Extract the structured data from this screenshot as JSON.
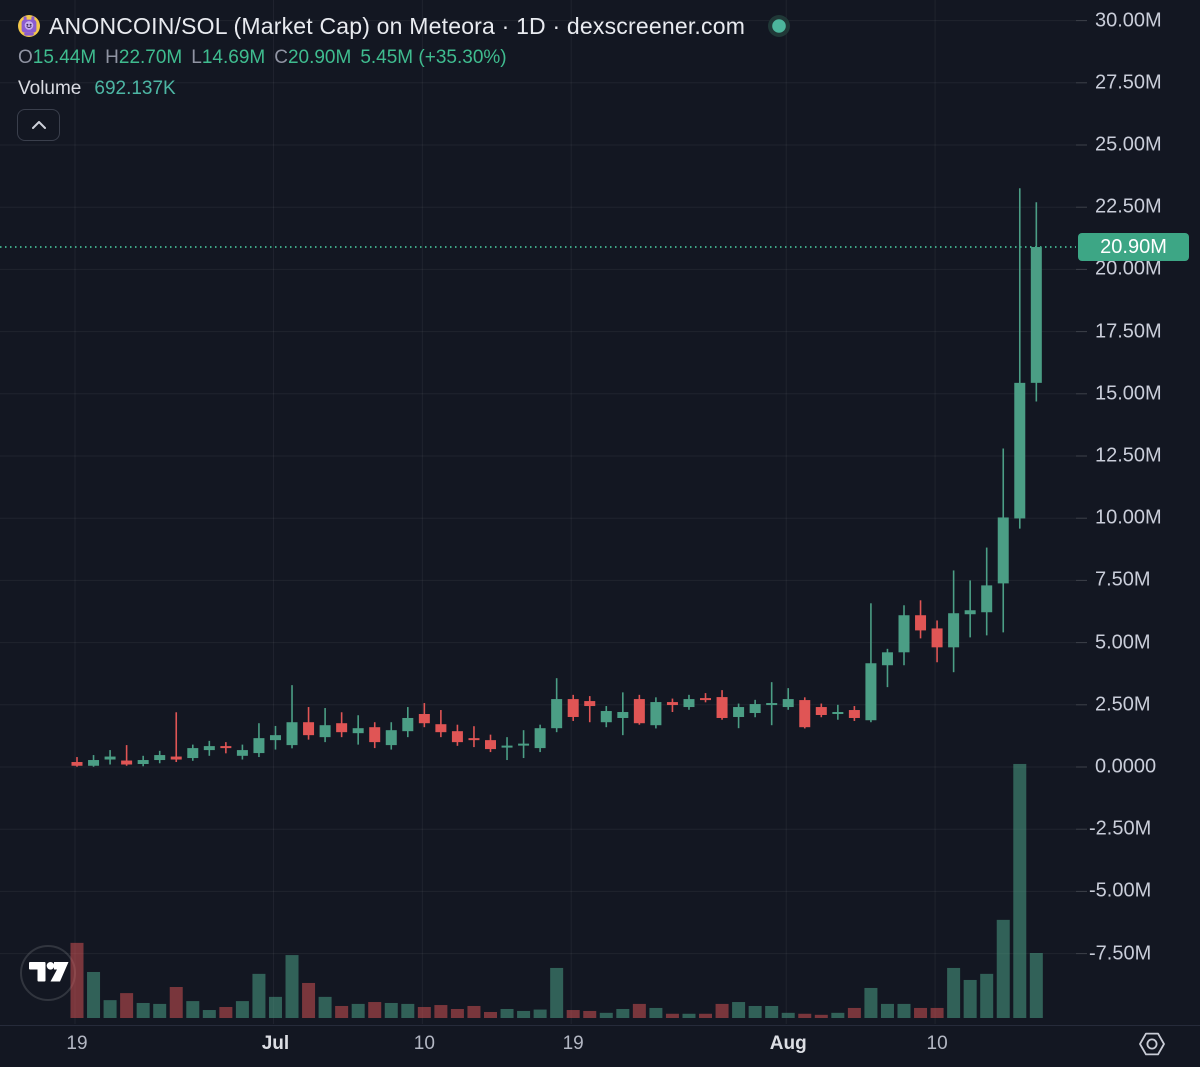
{
  "header": {
    "title": "ANONCOIN/SOL (Market Cap) on Meteora · 1D · dexscreener.com",
    "coin_icon": "anoncoin-robot-icon",
    "status_icon": "live-status-dot",
    "ohlc": {
      "items": [
        {
          "k": "O",
          "v": "15.44M"
        },
        {
          "k": "H",
          "v": "22.70M"
        },
        {
          "k": "L",
          "v": "14.69M"
        },
        {
          "k": "C",
          "v": "20.90M"
        }
      ],
      "change": "5.45M (+35.30%)"
    },
    "volume_label": "Volume",
    "volume_value": "692.137K",
    "collapse_icon": "chevron-up-icon"
  },
  "footer": {
    "watermark_icon": "tradingview-logo",
    "settings_icon": "gear-icon"
  },
  "colors": {
    "background": "#131722",
    "candle_up": "#4b9e85",
    "candle_down": "#e05555",
    "volume_up": "rgba(75,158,133,0.55)",
    "volume_down": "rgba(224,85,85,0.50)",
    "accent": "#3da685",
    "badge_bg": "#3da685",
    "legend_value_green": "#3fbc8f",
    "volume_value_teal": "#4db6a4",
    "grid": "rgba(255,255,255,0.055)"
  },
  "chart_data": {
    "type": "candlestick",
    "pair": "ANONCOIN/SOL",
    "metric": "Market Cap",
    "venue": "Meteora",
    "interval": "1D",
    "source": "dexscreener.com",
    "price_unit": "USD market cap, millions (M)",
    "volume_unit": "thousands (K)",
    "last_price": 20.9,
    "last_price_label": "20.90M",
    "ohlc_last": {
      "open": 15.44,
      "high": 22.7,
      "low": 14.69,
      "close": 20.9,
      "change_abs": 5.45,
      "change_pct": "+35.30%"
    },
    "last_volume_K": 692.137,
    "start_date": "Jun 19",
    "grid": true,
    "y_ticks": [
      {
        "text": "30.00M",
        "value": 30
      },
      {
        "text": "27.50M",
        "value": 27.5
      },
      {
        "text": "25.00M",
        "value": 25
      },
      {
        "text": "22.50M",
        "value": 22.5
      },
      {
        "text": "20.00M",
        "value": 20
      },
      {
        "text": "17.50M",
        "value": 17.5
      },
      {
        "text": "15.00M",
        "value": 15
      },
      {
        "text": "12.50M",
        "value": 12.5
      },
      {
        "text": "10.00M",
        "value": 10
      },
      {
        "text": "7.50M",
        "value": 7.5
      },
      {
        "text": "5.00M",
        "value": 5
      },
      {
        "text": "2.50M",
        "value": 2.5
      },
      {
        "text": "0.0000",
        "value": 0
      },
      {
        "text": "-2.50M",
        "value": -2.5
      },
      {
        "text": "-5.00M",
        "value": -5
      },
      {
        "text": "-7.50M",
        "value": -7.5
      }
    ],
    "x_ticks": [
      {
        "text": "19",
        "index": 0,
        "major": false
      },
      {
        "text": "Jul",
        "index": 12,
        "major": true
      },
      {
        "text": "10",
        "index": 21,
        "major": false
      },
      {
        "text": "19",
        "index": 30,
        "major": false
      },
      {
        "text": "Aug",
        "index": 43,
        "major": true
      },
      {
        "text": "10",
        "index": 52,
        "major": false
      }
    ],
    "candles_format": [
      "open_M",
      "high_M",
      "low_M",
      "close_M",
      "volume_K"
    ],
    "candles": [
      [
        0.2,
        0.4,
        0.01,
        0.05,
        800
      ],
      [
        0.05,
        0.48,
        0.01,
        0.28,
        490
      ],
      [
        0.3,
        0.68,
        0.1,
        0.42,
        190
      ],
      [
        0.26,
        0.88,
        0.05,
        0.1,
        265
      ],
      [
        0.12,
        0.45,
        0.03,
        0.28,
        160
      ],
      [
        0.28,
        0.65,
        0.15,
        0.48,
        150
      ],
      [
        0.42,
        2.2,
        0.2,
        0.3,
        330
      ],
      [
        0.36,
        0.9,
        0.25,
        0.76,
        180
      ],
      [
        0.68,
        1.05,
        0.45,
        0.84,
        85
      ],
      [
        0.84,
        1.0,
        0.55,
        0.78,
        117
      ],
      [
        0.45,
        0.9,
        0.3,
        0.68,
        180
      ],
      [
        0.56,
        1.76,
        0.4,
        1.16,
        470
      ],
      [
        1.08,
        1.65,
        0.7,
        1.28,
        225
      ],
      [
        0.88,
        3.29,
        0.75,
        1.8,
        670
      ],
      [
        1.8,
        2.41,
        1.1,
        1.28,
        373
      ],
      [
        1.2,
        2.37,
        1.0,
        1.68,
        225
      ],
      [
        1.76,
        2.2,
        1.2,
        1.4,
        128
      ],
      [
        1.36,
        2.08,
        0.9,
        1.56,
        150
      ],
      [
        1.6,
        1.8,
        0.76,
        1.0,
        170
      ],
      [
        0.88,
        1.8,
        0.7,
        1.48,
        160
      ],
      [
        1.44,
        2.41,
        1.2,
        1.97,
        150
      ],
      [
        2.13,
        2.57,
        1.6,
        1.76,
        117
      ],
      [
        1.72,
        2.29,
        1.2,
        1.4,
        138
      ],
      [
        1.44,
        1.7,
        0.85,
        1.0,
        96
      ],
      [
        1.16,
        1.64,
        0.8,
        1.12,
        128
      ],
      [
        1.08,
        1.3,
        0.6,
        0.72,
        64
      ],
      [
        0.8,
        1.2,
        0.28,
        0.86,
        96
      ],
      [
        0.88,
        1.48,
        0.36,
        0.94,
        75
      ],
      [
        0.76,
        1.7,
        0.6,
        1.56,
        90
      ],
      [
        1.56,
        3.57,
        1.4,
        2.73,
        533
      ],
      [
        2.73,
        2.9,
        1.85,
        2.01,
        85
      ],
      [
        2.65,
        2.85,
        1.8,
        2.45,
        75
      ],
      [
        1.8,
        2.45,
        1.6,
        2.25,
        55
      ],
      [
        1.97,
        3.0,
        1.28,
        2.21,
        96
      ],
      [
        2.73,
        2.9,
        1.7,
        1.76,
        150
      ],
      [
        1.68,
        2.8,
        1.55,
        2.61,
        107
      ],
      [
        2.61,
        2.75,
        2.21,
        2.49,
        45
      ],
      [
        2.41,
        2.9,
        2.3,
        2.73,
        45
      ],
      [
        2.77,
        2.97,
        2.6,
        2.73,
        45
      ],
      [
        2.81,
        3.09,
        1.9,
        1.97,
        150
      ],
      [
        2.01,
        2.55,
        1.56,
        2.41,
        170
      ],
      [
        2.17,
        2.7,
        2.0,
        2.53,
        128
      ],
      [
        2.5,
        3.41,
        1.68,
        2.57,
        128
      ],
      [
        2.41,
        3.17,
        2.3,
        2.73,
        55
      ],
      [
        2.69,
        2.8,
        1.55,
        1.6,
        45
      ],
      [
        2.41,
        2.55,
        2.0,
        2.09,
        34
      ],
      [
        2.17,
        2.5,
        1.9,
        2.21,
        55
      ],
      [
        2.29,
        2.45,
        1.85,
        1.97,
        107
      ],
      [
        1.88,
        6.58,
        1.8,
        4.17,
        320
      ],
      [
        4.09,
        4.75,
        3.21,
        4.61,
        150
      ],
      [
        4.61,
        6.5,
        4.09,
        6.1,
        150
      ],
      [
        6.1,
        6.7,
        5.17,
        5.49,
        107
      ],
      [
        5.57,
        5.89,
        4.21,
        4.81,
        107
      ],
      [
        4.81,
        7.9,
        3.81,
        6.18,
        533
      ],
      [
        6.14,
        7.5,
        5.21,
        6.3,
        405
      ],
      [
        6.22,
        8.82,
        5.29,
        7.3,
        470
      ],
      [
        7.38,
        12.8,
        5.41,
        10.03,
        1045
      ],
      [
        9.99,
        23.26,
        9.58,
        15.44,
        2705
      ],
      [
        15.44,
        22.7,
        14.69,
        20.9,
        692.137
      ]
    ]
  }
}
